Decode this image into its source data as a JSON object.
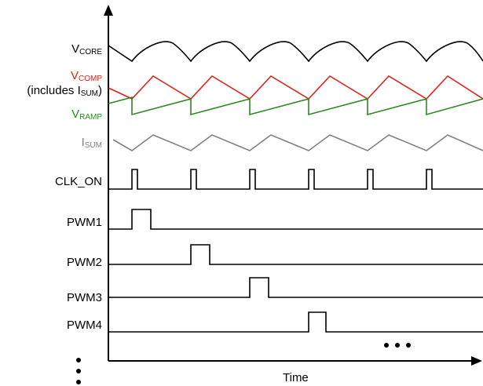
{
  "diagram": {
    "x_axis_label": "Time",
    "signals": {
      "vcore": {
        "main": "V",
        "sub": "CORE",
        "color": "#000000"
      },
      "vcomp": {
        "main": "V",
        "sub": "COMP",
        "color": "#e0201b"
      },
      "vcomp_note": {
        "prefix": "(includes I",
        "sub": "SUM",
        "suffix": ")",
        "color": "#000000"
      },
      "vramp": {
        "main": "V",
        "sub": "RAMP",
        "color": "#2a8a1f"
      },
      "isum": {
        "main": "I",
        "sub": "SUM",
        "color": "#808080"
      },
      "clk_on": {
        "label": "CLK_ON"
      },
      "pwm1": {
        "label": "PWM1"
      },
      "pwm2": {
        "label": "PWM2"
      },
      "pwm3": {
        "label": "PWM3"
      },
      "pwm4": {
        "label": "PWM4"
      }
    },
    "continuation_marks": {
      "horizontal": "• • •",
      "vertical": "⋮"
    }
  }
}
